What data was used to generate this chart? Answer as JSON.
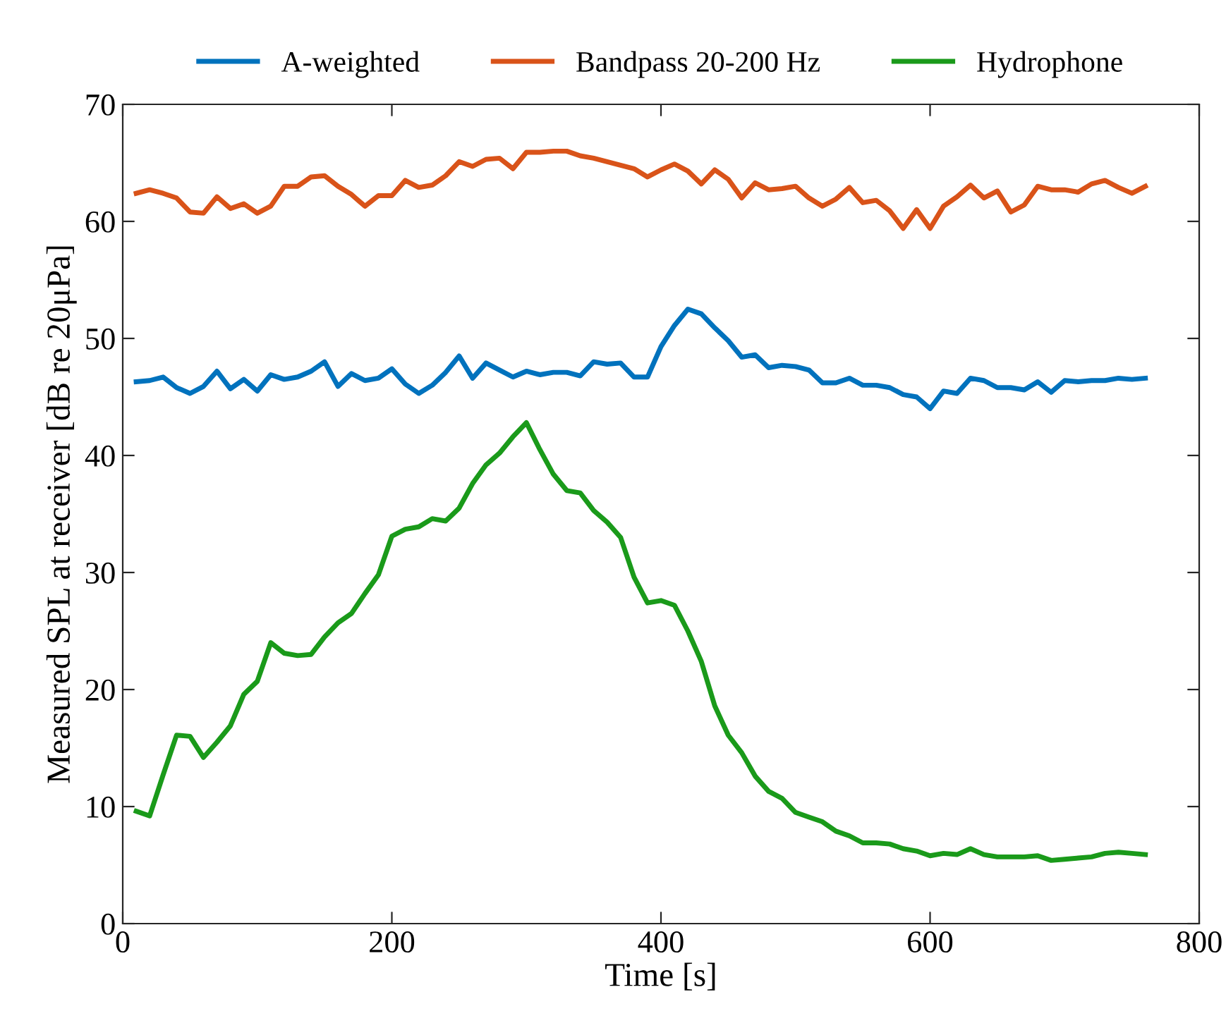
{
  "chart_data": {
    "type": "line",
    "xlabel": "Time [s]",
    "ylabel": "Measured SPL at receiver [dB re 20μPa]",
    "x": [
      10,
      20,
      30,
      40,
      50,
      60,
      70,
      80,
      90,
      100,
      110,
      120,
      130,
      140,
      150,
      160,
      170,
      180,
      190,
      200,
      210,
      220,
      230,
      240,
      250,
      260,
      270,
      280,
      290,
      300,
      310,
      320,
      330,
      340,
      350,
      360,
      370,
      380,
      390,
      400,
      410,
      420,
      430,
      440,
      450,
      460,
      470,
      480,
      490,
      500,
      510,
      520,
      530,
      540,
      550,
      560,
      570,
      580,
      590,
      600,
      610,
      620,
      630,
      640,
      650,
      660,
      670,
      680,
      690,
      700,
      710,
      720,
      730,
      740,
      750,
      760
    ],
    "series": [
      {
        "name": "A-weighted",
        "color": "#0072bd",
        "values": [
          46.3,
          46.4,
          46.7,
          45.8,
          45.3,
          45.9,
          47.2,
          45.7,
          46.5,
          45.5,
          46.9,
          46.5,
          46.7,
          47.2,
          48.0,
          45.9,
          47.0,
          46.4,
          46.6,
          47.4,
          46.1,
          45.3,
          46.0,
          47.1,
          48.5,
          46.6,
          47.9,
          47.3,
          46.7,
          47.2,
          46.9,
          47.1,
          47.1,
          46.8,
          48.0,
          47.8,
          47.9,
          46.7,
          46.7,
          49.3,
          51.1,
          52.5,
          52.1,
          50.9,
          49.8,
          48.4,
          48.6,
          47.5,
          47.7,
          47.6,
          47.3,
          46.2,
          46.2,
          46.6,
          46.0,
          46.0,
          45.8,
          45.2,
          45.0,
          44.0,
          45.5,
          45.3,
          46.6,
          46.4,
          45.8,
          45.8,
          45.6,
          46.3,
          45.4,
          46.4,
          46.3,
          46.4,
          46.4,
          46.6,
          46.5,
          46.6
        ]
      },
      {
        "name": "Bandpass 20-200 Hz",
        "color": "#d95319",
        "values": [
          62.4,
          62.7,
          62.4,
          62.0,
          60.8,
          60.7,
          62.1,
          61.1,
          61.5,
          60.7,
          61.3,
          63.0,
          63.0,
          63.8,
          63.9,
          63.0,
          62.3,
          61.3,
          62.2,
          62.2,
          63.5,
          62.9,
          63.1,
          63.9,
          65.1,
          64.7,
          65.3,
          65.4,
          64.5,
          65.9,
          65.9,
          66.0,
          66.0,
          65.6,
          65.4,
          65.1,
          64.8,
          64.5,
          63.8,
          64.4,
          64.9,
          64.3,
          63.2,
          64.4,
          63.6,
          62.0,
          63.3,
          62.7,
          62.8,
          63.0,
          62.0,
          61.3,
          61.9,
          62.9,
          61.6,
          61.8,
          60.9,
          59.4,
          61.0,
          59.4,
          61.3,
          62.1,
          63.1,
          62.0,
          62.6,
          60.8,
          61.4,
          63.0,
          62.7,
          62.7,
          62.5,
          63.2,
          63.5,
          62.9,
          62.4,
          63.0
        ]
      },
      {
        "name": "Hydrophone",
        "color": "#1a9a1a",
        "values": [
          9.6,
          9.2,
          12.7,
          16.1,
          16.0,
          14.2,
          15.5,
          16.9,
          19.6,
          20.7,
          24.0,
          23.1,
          22.9,
          23.0,
          24.5,
          25.7,
          26.5,
          28.2,
          29.8,
          33.1,
          33.7,
          33.9,
          34.6,
          34.4,
          35.5,
          37.6,
          39.2,
          40.2,
          41.6,
          42.8,
          40.5,
          38.4,
          37.0,
          36.8,
          35.3,
          34.3,
          33.0,
          29.6,
          27.4,
          27.6,
          27.2,
          25.0,
          22.4,
          18.6,
          16.1,
          14.6,
          12.6,
          11.3,
          10.7,
          9.5,
          9.1,
          8.7,
          7.9,
          7.5,
          6.9,
          6.9,
          6.8,
          6.4,
          6.2,
          5.8,
          6.0,
          5.9,
          6.4,
          5.9,
          5.7,
          5.7,
          5.7,
          5.8,
          5.4,
          5.5,
          5.6,
          5.7,
          6.0,
          6.1,
          6.0,
          5.9
        ]
      }
    ],
    "xlim": [
      0,
      800
    ],
    "xticks": [
      0,
      200,
      400,
      600,
      800
    ],
    "ylim": [
      0,
      70
    ],
    "yticks": [
      0,
      10,
      20,
      30,
      40,
      50,
      60,
      70
    ],
    "grid": false,
    "legend": "top",
    "marker": "none",
    "line_style": "solid"
  }
}
